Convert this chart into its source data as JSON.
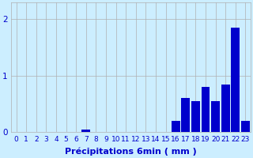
{
  "categories": [
    0,
    1,
    2,
    3,
    4,
    5,
    6,
    7,
    8,
    9,
    10,
    11,
    12,
    13,
    14,
    15,
    16,
    17,
    18,
    19,
    20,
    21,
    22,
    23
  ],
  "values": [
    0,
    0,
    0,
    0,
    0,
    0,
    0,
    0.05,
    0,
    0,
    0,
    0,
    0,
    0,
    0,
    0,
    0.2,
    0.6,
    0.55,
    0.8,
    0.55,
    0.85,
    1.85,
    0.2
  ],
  "bar_color": "#0000cc",
  "bg_color": "#cceeff",
  "grid_color": "#b0b0b0",
  "xlabel": "Précipitations 6min ( mm )",
  "ylim": [
    0,
    2.3
  ],
  "yticks": [
    0,
    1,
    2
  ],
  "xlim": [
    -0.5,
    23.5
  ],
  "bar_width": 0.85,
  "xlabel_fontsize": 8,
  "tick_fontsize": 6.5
}
